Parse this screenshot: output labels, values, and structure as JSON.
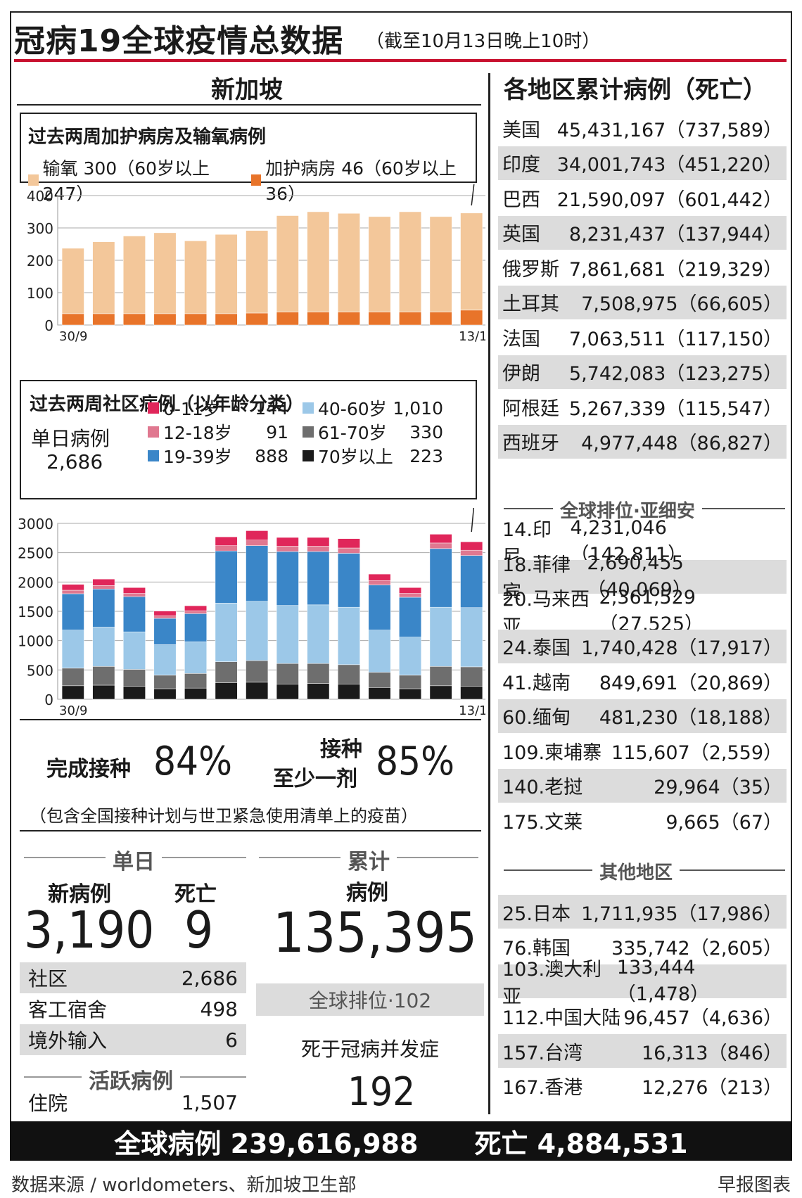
{
  "title": "冠病19全球疫情总数据",
  "subtitle": "（截至10月13日晚上10时）",
  "singapore": {
    "header": "新加坡",
    "icu_box": {
      "title": "过去两周加护病房及输氧病例",
      "legend_oxygen": "输氧 300（60岁以上247）",
      "legend_icu": "加护病房 46（60岁以上36）"
    },
    "age_box": {
      "title": "过去两周社区病例（以年龄分类）",
      "daily_label": "单日病例",
      "daily_value": "2,686",
      "groups": [
        {
          "name": "0-11岁",
          "value": "144",
          "color": "#e0265a"
        },
        {
          "name": "12-18岁",
          "value": "91",
          "color": "#e07890"
        },
        {
          "name": "19-39岁",
          "value": "888",
          "color": "#3a86c8"
        },
        {
          "name": "40-60岁",
          "value": "1,010",
          "color": "#9cc8e8"
        },
        {
          "name": "61-70岁",
          "value": "330",
          "color": "#6e6e6e"
        },
        {
          "name": "70岁以上",
          "value": "223",
          "color": "#1a1a1a"
        }
      ]
    },
    "vaccine": {
      "complete_label": "完成接种",
      "complete_value": "84%",
      "one_dose_label1": "接种",
      "one_dose_label2": "至少一剂",
      "one_dose_value": "85%",
      "note": "（包含全国接种计划与世卫紧急使用清单上的疫苗）"
    },
    "daily": {
      "header": "单日",
      "new_label": "新病例",
      "new_value": "3,190",
      "death_label": "死亡",
      "death_value": "9",
      "rows": [
        {
          "label": "社区",
          "value": "2,686"
        },
        {
          "label": "客工宿舍",
          "value": "498"
        },
        {
          "label": "境外输入",
          "value": "6"
        }
      ]
    },
    "active": {
      "header": "活跃病例",
      "label": "住院",
      "value": "1,507"
    },
    "cumulative": {
      "header": "累计",
      "cases_label": "病例",
      "cases_value": "135,395",
      "rank": "全球排位·102",
      "death_label": "死于冠病并发症",
      "death_value": "192"
    }
  },
  "regions": {
    "header": "各地区累计病例（死亡）",
    "top": [
      {
        "name": "美国",
        "cases": "45,431,167",
        "deaths": "（737,589）"
      },
      {
        "name": "印度",
        "cases": "34,001,743",
        "deaths": "（451,220）"
      },
      {
        "name": "巴西",
        "cases": "21,590,097",
        "deaths": "（601,442）"
      },
      {
        "name": "英国",
        "cases": "8,231,437",
        "deaths": "（137,944）"
      },
      {
        "name": "俄罗斯",
        "cases": "7,861,681",
        "deaths": "（219,329）"
      },
      {
        "name": "土耳其",
        "cases": "7,508,975",
        "deaths": "（66,605）"
      },
      {
        "name": "法国",
        "cases": "7,063,511",
        "deaths": "（117,150）"
      },
      {
        "name": "伊朗",
        "cases": "5,742,083",
        "deaths": "（123,275）"
      },
      {
        "name": "阿根廷",
        "cases": "5,267,339",
        "deaths": "（115,547）"
      },
      {
        "name": "西班牙",
        "cases": "4,977,448",
        "deaths": "（86,827）"
      }
    ],
    "asean_header": "全球排位·亚细安",
    "asean": [
      {
        "name": "14.印尼",
        "cases": "4,231,046",
        "deaths": "（142,811）"
      },
      {
        "name": "18.菲律宾",
        "cases": "2,690,455",
        "deaths": "（40,069）"
      },
      {
        "name": "20.马来西亚",
        "cases": "2,361,529",
        "deaths": "（27,525）"
      },
      {
        "name": "24.泰国",
        "cases": "1,740,428",
        "deaths": "（17,917）"
      },
      {
        "name": "41.越南",
        "cases": "849,691",
        "deaths": "（20,869）"
      },
      {
        "name": "60.缅甸",
        "cases": "481,230",
        "deaths": "（18,188）"
      },
      {
        "name": "109.柬埔寨",
        "cases": "115,607",
        "deaths": "（2,559）"
      },
      {
        "name": "140.老挝",
        "cases": "29,964",
        "deaths": "（35）"
      },
      {
        "name": "175.文莱",
        "cases": "9,665",
        "deaths": "（67）"
      }
    ],
    "other_header": "其他地区",
    "other": [
      {
        "name": "25.日本",
        "cases": "1,711,935",
        "deaths": "（17,986）"
      },
      {
        "name": "76.韩国",
        "cases": "335,742",
        "deaths": "（2,605）"
      },
      {
        "name": "103.澳大利亚",
        "cases": "133,444",
        "deaths": "（1,478）"
      },
      {
        "name": "112.中国大陆",
        "cases": "96,457",
        "deaths": "（4,636）"
      },
      {
        "name": "157.台湾",
        "cases": "16,313",
        "deaths": "（846）"
      },
      {
        "name": "167.香港",
        "cases": "12,276",
        "deaths": "（213）"
      }
    ]
  },
  "footer": {
    "global_cases": "全球病例 239,616,988",
    "global_deaths": "死亡 4,884,531"
  },
  "source": "数据来源 / worldometers、新加坡卫生部",
  "credit": "早报图表",
  "chart_data": [
    {
      "type": "bar",
      "stacked": true,
      "title": "过去两周加护病房及输氧病例",
      "x_start": "30/9",
      "x_end": "13/10",
      "ylim": [
        0,
        400
      ],
      "yticks": [
        0,
        100,
        200,
        300,
        400
      ],
      "series": [
        {
          "name": "加护病房",
          "color": "#e8742a",
          "values": [
            35,
            35,
            35,
            35,
            35,
            35,
            37,
            40,
            40,
            40,
            40,
            40,
            40,
            46
          ]
        },
        {
          "name": "输氧",
          "color": "#f3c79a",
          "values": [
            202,
            222,
            240,
            250,
            225,
            245,
            255,
            298,
            310,
            305,
            295,
            310,
            295,
            300
          ]
        }
      ]
    },
    {
      "type": "bar",
      "stacked": true,
      "title": "过去两周社区病例（以年龄分类）",
      "x_start": "30/9",
      "x_end": "13/10",
      "ylim": [
        0,
        3000
      ],
      "yticks": [
        0,
        500,
        1000,
        1500,
        2000,
        2500,
        3000
      ],
      "series": [
        {
          "name": "70岁以上",
          "color": "#1a1a1a",
          "values": [
            230,
            240,
            220,
            180,
            190,
            280,
            290,
            260,
            270,
            260,
            200,
            180,
            230,
            223
          ]
        },
        {
          "name": "61-70岁",
          "color": "#6e6e6e",
          "values": [
            300,
            320,
            290,
            230,
            250,
            360,
            370,
            350,
            340,
            330,
            260,
            230,
            330,
            330
          ]
        },
        {
          "name": "40-60岁",
          "color": "#9cc8e8",
          "values": [
            650,
            670,
            640,
            520,
            540,
            1000,
            1010,
            990,
            1000,
            980,
            720,
            650,
            1010,
            1010
          ]
        },
        {
          "name": "19-39岁",
          "color": "#3a86c8",
          "values": [
            620,
            650,
            600,
            450,
            480,
            890,
            950,
            920,
            910,
            920,
            770,
            680,
            1000,
            888
          ]
        },
        {
          "name": "12-18岁",
          "color": "#e07890",
          "values": [
            60,
            60,
            55,
            45,
            50,
            90,
            95,
            90,
            90,
            90,
            75,
            65,
            95,
            91
          ]
        },
        {
          "name": "0-11岁",
          "color": "#e0265a",
          "values": [
            100,
            110,
            100,
            80,
            85,
            150,
            160,
            150,
            150,
            160,
            110,
            100,
            150,
            144
          ]
        }
      ]
    }
  ]
}
